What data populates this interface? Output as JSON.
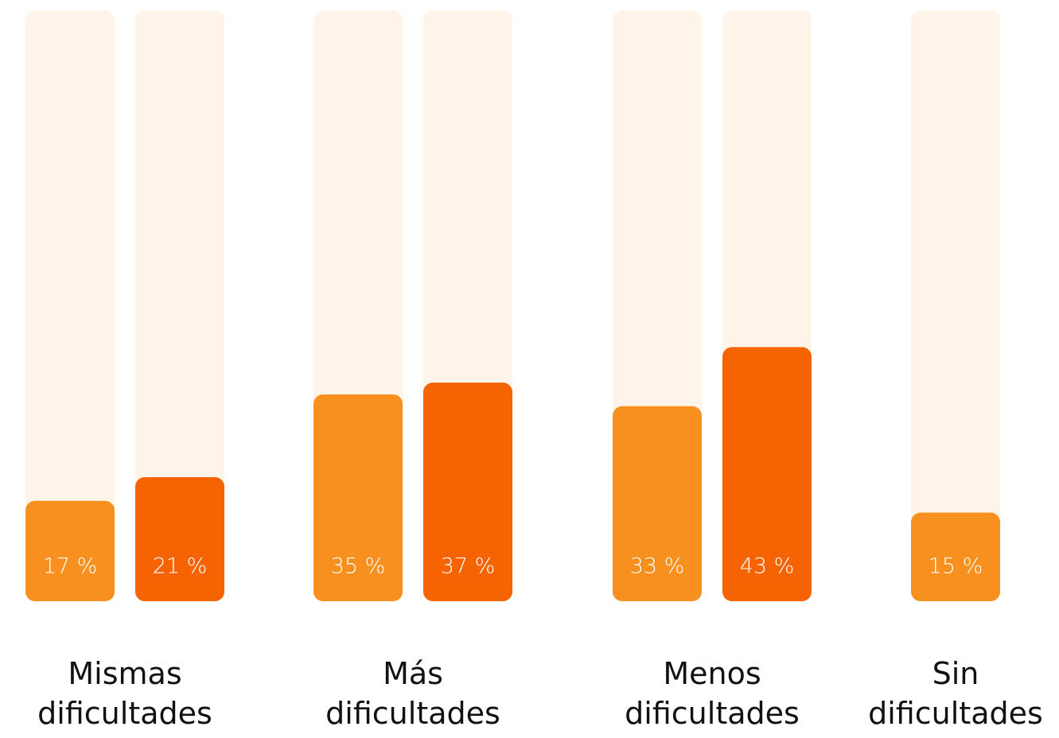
{
  "chart_data": {
    "type": "bar",
    "categories": [
      "Mismas dificultades",
      "Más dificultades",
      "Menos dificultades",
      "Sin dificultades"
    ],
    "series": [
      {
        "color": "#f7901e",
        "values": [
          17,
          35,
          33,
          15
        ],
        "value_labels": [
          "17 %",
          "35 %",
          "33 %",
          "15 %"
        ]
      },
      {
        "color": "#f66303",
        "values": [
          21,
          37,
          43,
          null
        ],
        "value_labels": [
          "21 %",
          "37 %",
          "43 %",
          null
        ]
      }
    ],
    "ylim": [
      0,
      100
    ],
    "track_color": "#fef4ea"
  }
}
